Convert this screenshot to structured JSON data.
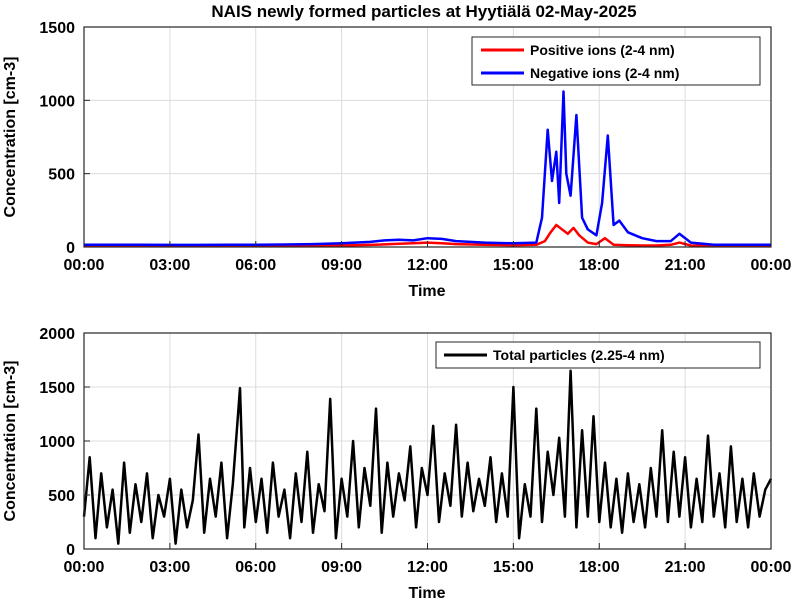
{
  "chart_data": [
    {
      "type": "line",
      "title": "NAIS newly formed particles at Hyytiälä 02-May-2025",
      "xlabel": "Time",
      "ylabel": "Concentration [cm-3]",
      "xlim_hours": [
        0,
        24
      ],
      "ylim": [
        0,
        1500
      ],
      "xticks": [
        "00:00",
        "03:00",
        "06:00",
        "09:00",
        "12:00",
        "15:00",
        "18:00",
        "21:00",
        "00:00"
      ],
      "yticks": [
        0,
        500,
        1000,
        1500
      ],
      "grid": true,
      "legend_position": "top-right",
      "series": [
        {
          "name": "Positive ions (2-4 nm)",
          "color": "#ff0000",
          "x_hours": [
            0,
            1,
            2,
            3,
            4,
            5,
            6,
            7,
            8,
            9,
            10,
            10.5,
            11,
            11.5,
            12,
            12.5,
            13,
            14,
            15,
            15.8,
            16.1,
            16.3,
            16.5,
            16.7,
            16.9,
            17.1,
            17.3,
            17.6,
            17.9,
            18.2,
            18.5,
            19,
            19.5,
            20,
            20.5,
            20.8,
            21.2,
            22,
            23,
            24
          ],
          "values": [
            5,
            5,
            5,
            5,
            5,
            6,
            6,
            7,
            8,
            10,
            14,
            18,
            22,
            25,
            30,
            25,
            20,
            15,
            12,
            15,
            40,
            100,
            150,
            120,
            90,
            130,
            80,
            30,
            20,
            60,
            15,
            12,
            10,
            10,
            15,
            30,
            10,
            8,
            6,
            5
          ]
        },
        {
          "name": "Negative ions (2-4 nm)",
          "color": "#0000ff",
          "x_hours": [
            0,
            1,
            2,
            3,
            4,
            5,
            6,
            7,
            8,
            9,
            10,
            10.5,
            11,
            11.5,
            12,
            12.5,
            13,
            14,
            15,
            15.8,
            16.0,
            16.2,
            16.35,
            16.5,
            16.6,
            16.75,
            16.85,
            17.0,
            17.2,
            17.4,
            17.6,
            17.9,
            18.1,
            18.3,
            18.5,
            18.7,
            19,
            19.5,
            20,
            20.5,
            20.8,
            21.2,
            22,
            23,
            24
          ],
          "values": [
            15,
            15,
            15,
            14,
            14,
            15,
            16,
            17,
            20,
            25,
            35,
            45,
            50,
            45,
            60,
            55,
            40,
            30,
            25,
            30,
            200,
            800,
            450,
            650,
            300,
            1060,
            500,
            350,
            900,
            200,
            120,
            80,
            300,
            760,
            150,
            180,
            100,
            60,
            40,
            40,
            90,
            30,
            15,
            15,
            15
          ]
        }
      ]
    },
    {
      "type": "line",
      "xlabel": "Time",
      "ylabel": "Concentration [cm-3]",
      "xlim_hours": [
        0,
        24
      ],
      "ylim": [
        0,
        2000
      ],
      "xticks": [
        "00:00",
        "03:00",
        "06:00",
        "09:00",
        "12:00",
        "15:00",
        "18:00",
        "21:00",
        "00:00"
      ],
      "yticks": [
        0,
        500,
        1000,
        1500,
        2000
      ],
      "grid": true,
      "legend_position": "top-right",
      "series": [
        {
          "name": "Total particles (2.25-4 nm)",
          "color": "#000000",
          "x_hours": [
            0,
            0.2,
            0.4,
            0.6,
            0.8,
            1,
            1.2,
            1.4,
            1.6,
            1.8,
            2,
            2.2,
            2.4,
            2.6,
            2.8,
            3,
            3.2,
            3.4,
            3.6,
            3.8,
            4.0,
            4.2,
            4.4,
            4.6,
            4.8,
            5.0,
            5.2,
            5.45,
            5.6,
            5.8,
            6.0,
            6.2,
            6.4,
            6.6,
            6.8,
            7.0,
            7.2,
            7.4,
            7.6,
            7.8,
            8.0,
            8.2,
            8.4,
            8.6,
            8.8,
            9.0,
            9.2,
            9.4,
            9.6,
            9.8,
            10.0,
            10.2,
            10.4,
            10.6,
            10.8,
            11.0,
            11.2,
            11.4,
            11.6,
            11.8,
            12.0,
            12.2,
            12.4,
            12.6,
            12.8,
            13.0,
            13.2,
            13.4,
            13.6,
            13.8,
            14.0,
            14.2,
            14.4,
            14.6,
            14.8,
            15.0,
            15.2,
            15.4,
            15.6,
            15.8,
            16.0,
            16.2,
            16.4,
            16.6,
            16.8,
            17.0,
            17.2,
            17.4,
            17.6,
            17.8,
            18.0,
            18.2,
            18.4,
            18.6,
            18.8,
            19.0,
            19.2,
            19.4,
            19.6,
            19.8,
            20.0,
            20.2,
            20.4,
            20.6,
            20.8,
            21.0,
            21.2,
            21.4,
            21.6,
            21.8,
            22.0,
            22.2,
            22.4,
            22.6,
            22.8,
            23.0,
            23.2,
            23.4,
            23.6,
            23.8,
            24.0
          ],
          "values": [
            300,
            850,
            100,
            700,
            200,
            550,
            50,
            800,
            150,
            600,
            250,
            700,
            100,
            500,
            300,
            650,
            50,
            550,
            200,
            450,
            1060,
            150,
            650,
            300,
            800,
            100,
            600,
            1490,
            200,
            750,
            250,
            650,
            150,
            800,
            300,
            550,
            100,
            700,
            250,
            900,
            150,
            600,
            350,
            1390,
            100,
            650,
            300,
            1000,
            200,
            750,
            400,
            1300,
            150,
            800,
            300,
            700,
            450,
            950,
            200,
            750,
            500,
            1140,
            250,
            700,
            400,
            1150,
            300,
            800,
            350,
            650,
            400,
            850,
            250,
            700,
            300,
            1500,
            100,
            600,
            300,
            1300,
            250,
            900,
            500,
            1030,
            300,
            1650,
            200,
            1100,
            300,
            1230,
            250,
            800,
            200,
            650,
            150,
            700,
            250,
            600,
            200,
            750,
            300,
            1100,
            250,
            900,
            300,
            850,
            200,
            650,
            250,
            1050,
            300,
            700,
            200,
            950,
            250,
            650,
            200,
            700,
            300,
            550,
            650
          ]
        }
      ]
    }
  ]
}
